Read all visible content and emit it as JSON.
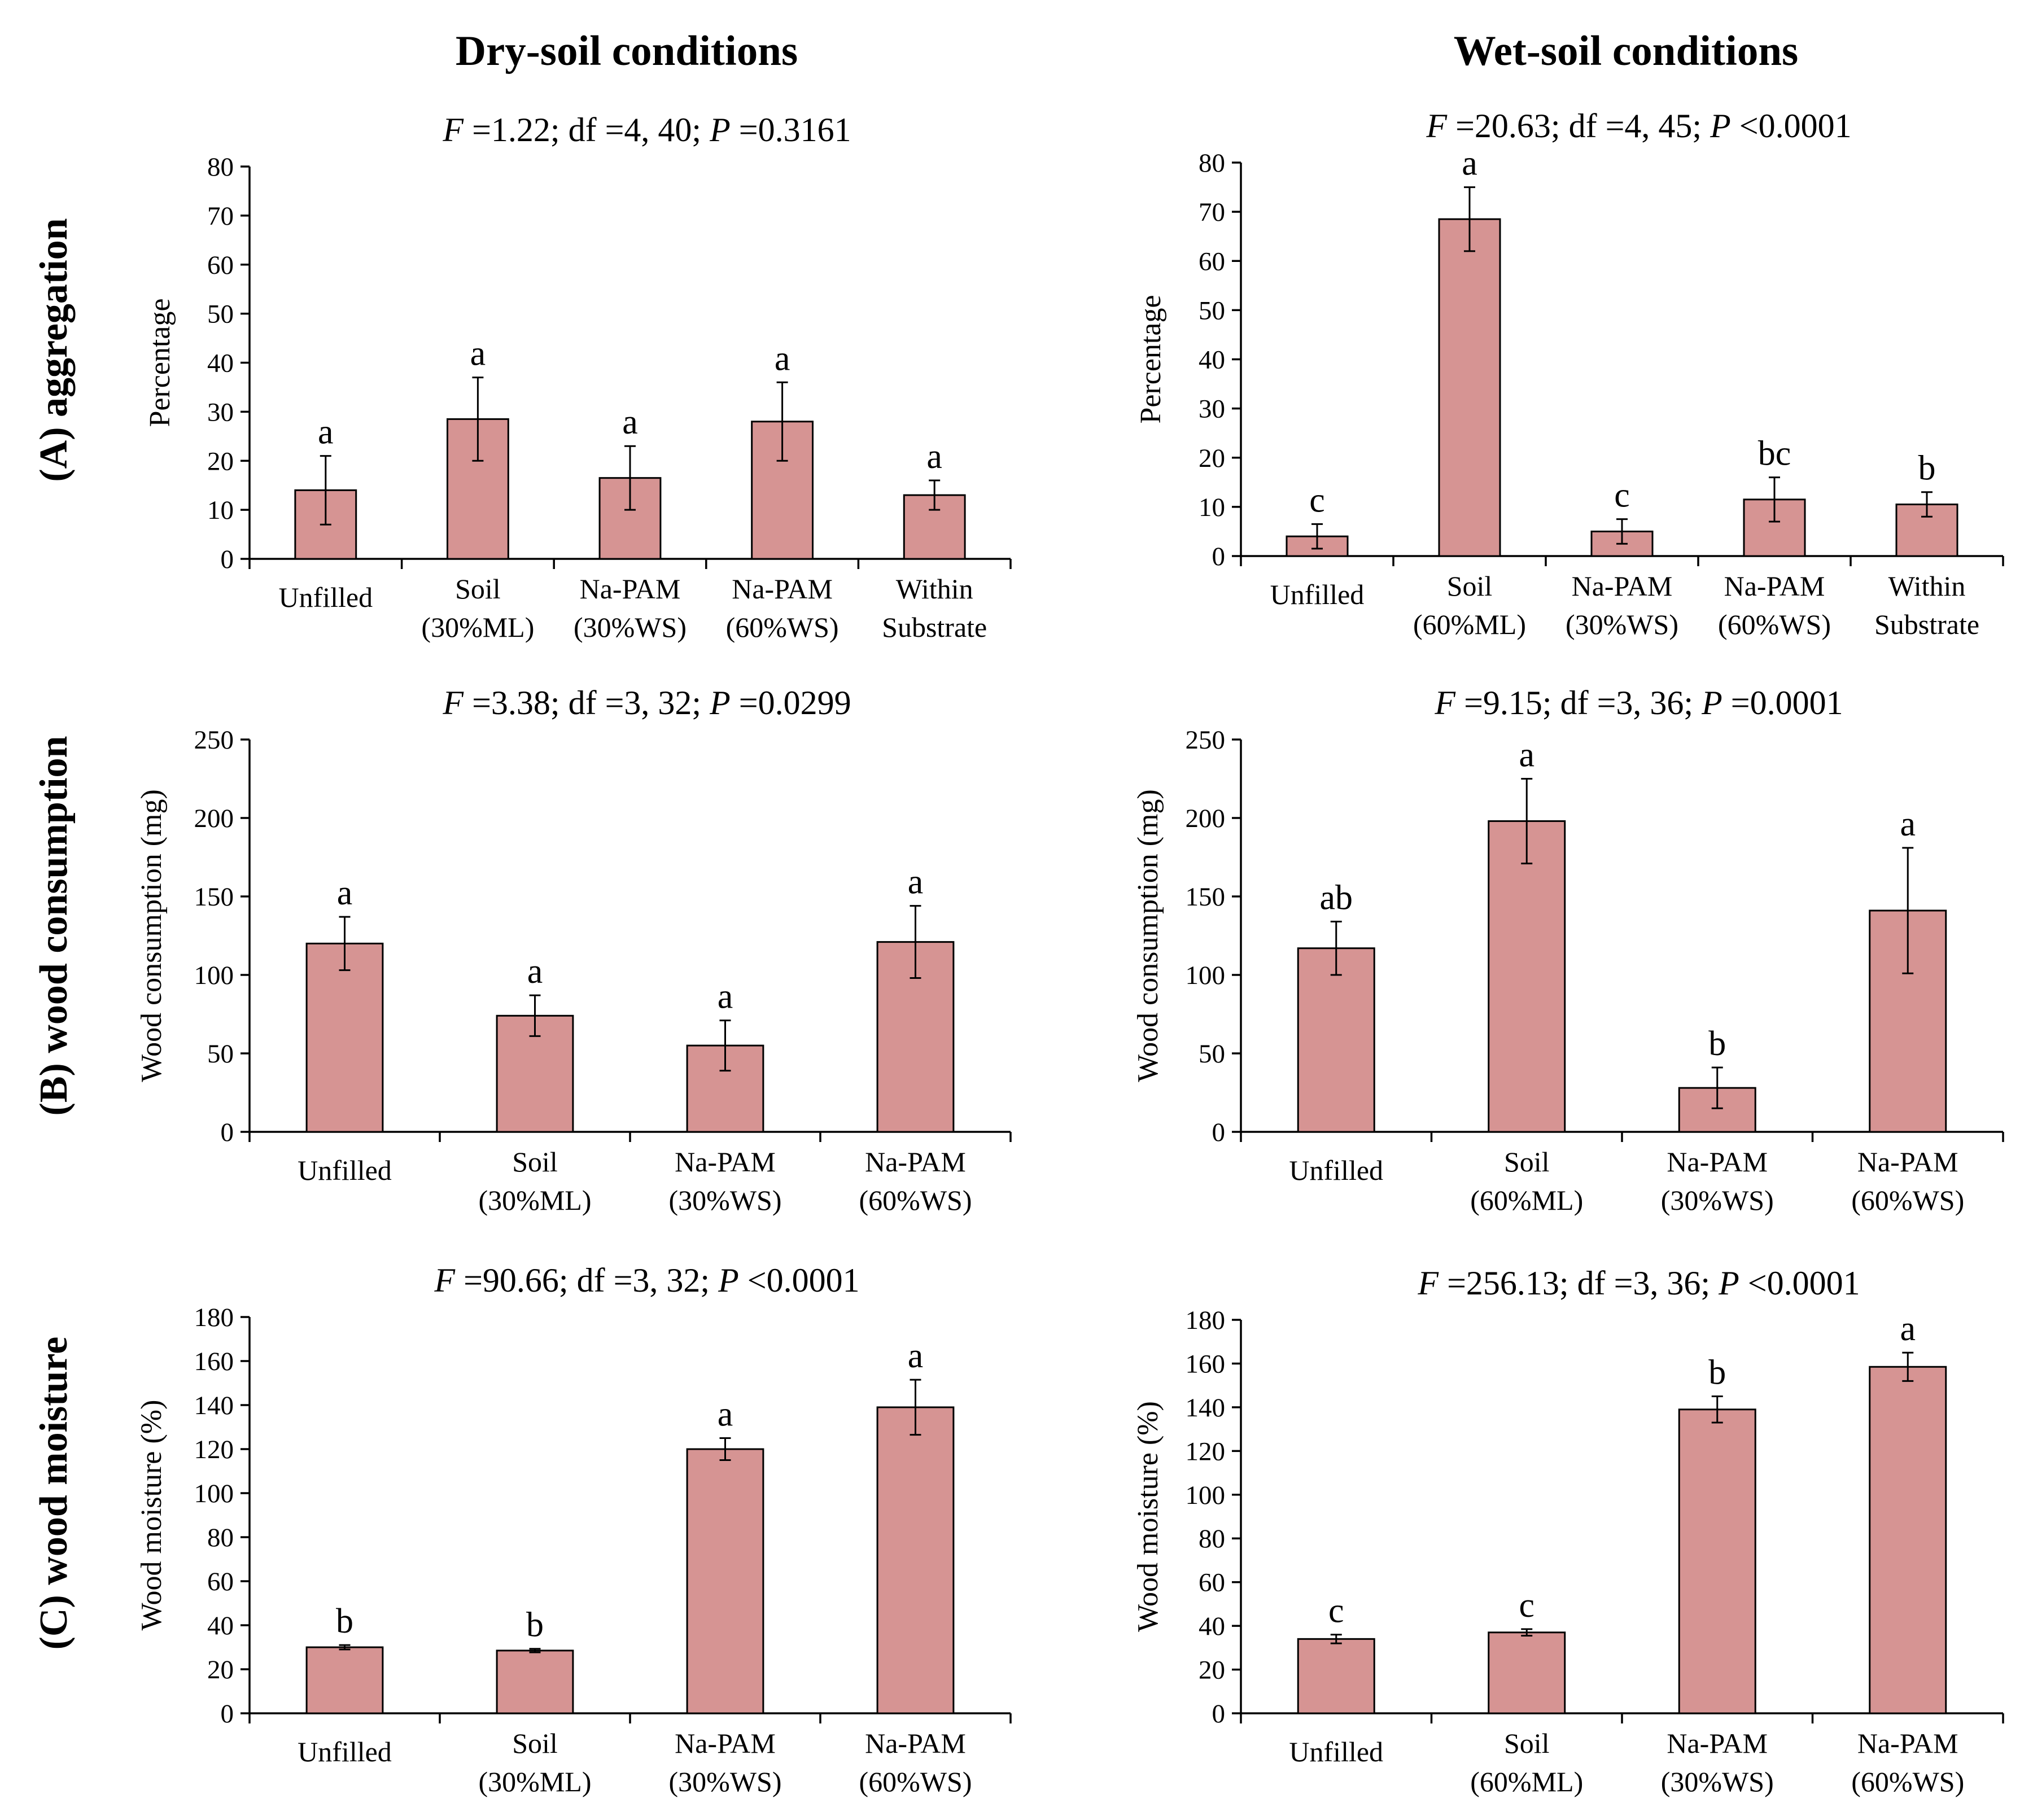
{
  "figure": {
    "column_titles": [
      "Dry-soil conditions",
      "Wet-soil conditions"
    ],
    "row_titles": [
      "(A) aggregation",
      "(B) wood consumption",
      "(C) wood moisture"
    ],
    "bar_color": "#d69493"
  },
  "chart_data": [
    {
      "id": "A-dry",
      "type": "bar",
      "row": 0,
      "col": 0,
      "stat": {
        "F": "1.22",
        "rest": "; df =4, 40; ",
        "P": "=0.3161"
      },
      "ylabel": "Percentage",
      "ylim": [
        0,
        80
      ],
      "ystep": 10,
      "categories": [
        [
          "Unfilled"
        ],
        [
          "Soil",
          "(30%ML)"
        ],
        [
          "Na-PAM",
          "(30%WS)"
        ],
        [
          "Na-PAM",
          "(60%WS)"
        ],
        [
          "Within",
          "Substrate"
        ]
      ],
      "values": [
        14,
        28.5,
        16.5,
        28,
        13
      ],
      "errors": [
        7,
        8.5,
        6.5,
        8,
        3
      ],
      "letters": [
        "a",
        "a",
        "a",
        "a",
        "a"
      ]
    },
    {
      "id": "A-wet",
      "type": "bar",
      "row": 0,
      "col": 1,
      "stat": {
        "F": "20.63",
        "rest": "; df =4, 45; ",
        "P": "<0.0001"
      },
      "ylabel": "Percentage",
      "ylim": [
        0,
        80
      ],
      "ystep": 10,
      "categories": [
        [
          "Unfilled"
        ],
        [
          "Soil",
          "(60%ML)"
        ],
        [
          "Na-PAM",
          "(30%WS)"
        ],
        [
          "Na-PAM",
          "(60%WS)"
        ],
        [
          "Within",
          "Substrate"
        ]
      ],
      "values": [
        4,
        68.5,
        5,
        11.5,
        10.5
      ],
      "errors": [
        2.5,
        6.5,
        2.5,
        4.5,
        2.5
      ],
      "letters": [
        "c",
        "a",
        "c",
        "bc",
        "b"
      ]
    },
    {
      "id": "B-dry",
      "type": "bar",
      "row": 1,
      "col": 0,
      "stat": {
        "F": "3.38",
        "rest": "; df =3, 32; ",
        "P": "=0.0299"
      },
      "ylabel": "Wood consumption (mg)",
      "ylim": [
        0,
        250
      ],
      "ystep": 50,
      "categories": [
        [
          "Unfilled"
        ],
        [
          "Soil",
          "(30%ML)"
        ],
        [
          "Na-PAM",
          "(30%WS)"
        ],
        [
          "Na-PAM",
          "(60%WS)"
        ]
      ],
      "values": [
        120,
        74,
        55,
        121
      ],
      "errors": [
        17,
        13,
        16,
        23
      ],
      "letters": [
        "a",
        "a",
        "a",
        "a"
      ]
    },
    {
      "id": "B-wet",
      "type": "bar",
      "row": 1,
      "col": 1,
      "stat": {
        "F": "9.15",
        "rest": "; df =3, 36; ",
        "P": "=0.0001"
      },
      "ylabel": "Wood consumption (mg)",
      "ylim": [
        0,
        250
      ],
      "ystep": 50,
      "categories": [
        [
          "Unfilled"
        ],
        [
          "Soil",
          "(60%ML)"
        ],
        [
          "Na-PAM",
          "(30%WS)"
        ],
        [
          "Na-PAM",
          "(60%WS)"
        ]
      ],
      "values": [
        117,
        198,
        28,
        141
      ],
      "errors": [
        17,
        27,
        13,
        40
      ],
      "letters": [
        "ab",
        "a",
        "b",
        "a"
      ]
    },
    {
      "id": "C-dry",
      "type": "bar",
      "row": 2,
      "col": 0,
      "stat": {
        "F": "90.66",
        "rest": "; df =3, 32; ",
        "P": "<0.0001"
      },
      "ylabel": "Wood moisture (%)",
      "ylim": [
        0,
        180
      ],
      "ystep": 20,
      "categories": [
        [
          "Unfilled"
        ],
        [
          "Soil",
          "(30%ML)"
        ],
        [
          "Na-PAM",
          "(30%WS)"
        ],
        [
          "Na-PAM",
          "(60%WS)"
        ]
      ],
      "values": [
        30,
        28.5,
        120,
        139
      ],
      "errors": [
        1,
        0.8,
        5,
        12.5
      ],
      "letters": [
        "b",
        "b",
        "a",
        "a"
      ]
    },
    {
      "id": "C-wet",
      "type": "bar",
      "row": 2,
      "col": 1,
      "stat": {
        "F": "256.13",
        "rest": "; df =3, 36; ",
        "P": "<0.0001"
      },
      "ylabel": "Wood moisture (%)",
      "ylim": [
        0,
        180
      ],
      "ystep": 20,
      "categories": [
        [
          "Unfilled"
        ],
        [
          "Soil",
          "(60%ML)"
        ],
        [
          "Na-PAM",
          "(30%WS)"
        ],
        [
          "Na-PAM",
          "(60%WS)"
        ]
      ],
      "values": [
        34,
        37,
        139,
        158.5
      ],
      "errors": [
        2,
        1.5,
        6,
        6.5
      ],
      "letters": [
        "c",
        "c",
        "b",
        "a"
      ]
    }
  ]
}
